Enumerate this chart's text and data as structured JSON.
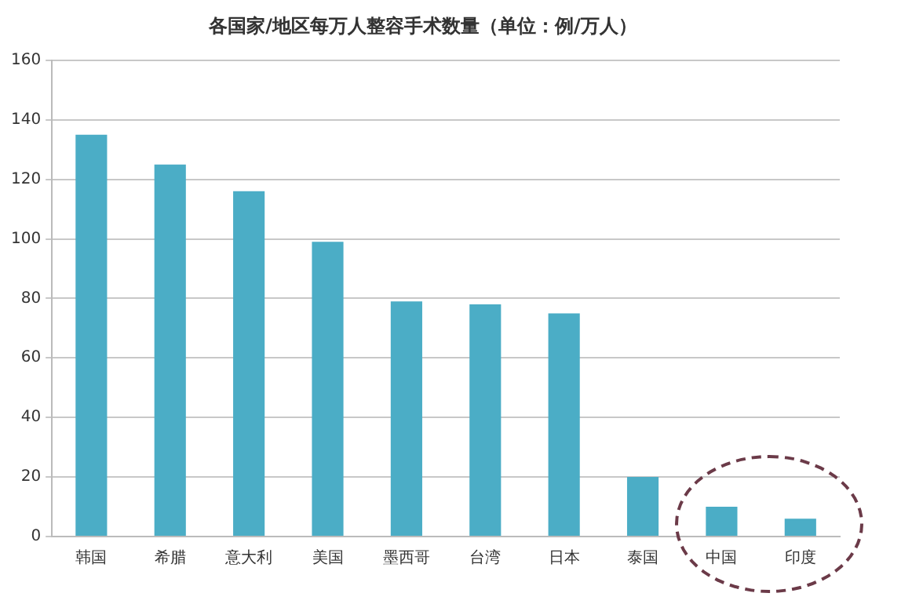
{
  "chart_data": {
    "type": "bar",
    "title": "各国家/地区每万人整容手术数量（单位：例/万人）",
    "categories": [
      "韩国",
      "希腊",
      "意大利",
      "美国",
      "墨西哥",
      "台湾",
      "日本",
      "泰国",
      "中国",
      "印度"
    ],
    "values": [
      135,
      125,
      116,
      99,
      79,
      78,
      75,
      20,
      10,
      6
    ],
    "color": "#4badc6",
    "ylim": [
      0,
      160
    ],
    "yticks": [
      0,
      20,
      40,
      60,
      80,
      100,
      120,
      140,
      160
    ],
    "grid": "y",
    "legend": false
  }
}
